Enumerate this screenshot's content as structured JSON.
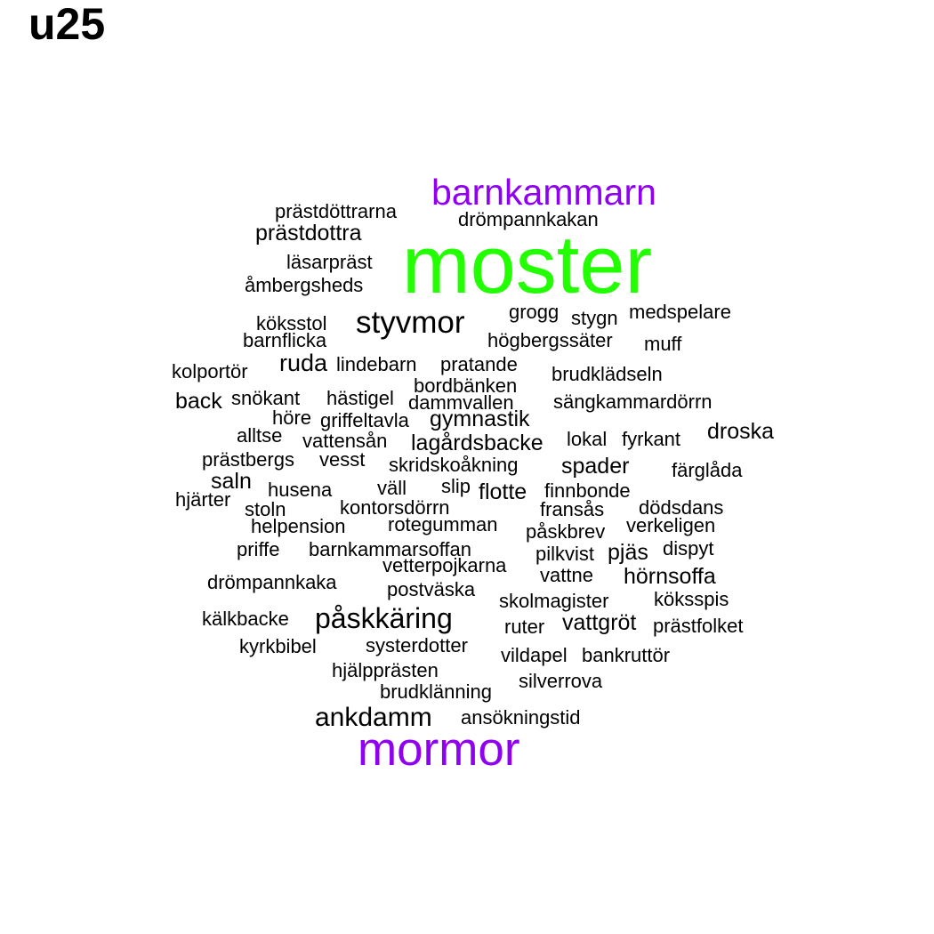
{
  "panel_title": "u25",
  "colors": {
    "top": "#22ff00",
    "high": "#8f00f0",
    "normal": "#000000"
  },
  "words": [
    {
      "text": "moster",
      "tier": "top"
    },
    {
      "text": "barnkammarn",
      "tier": "high"
    },
    {
      "text": "mormor",
      "tier": "high"
    },
    {
      "text": "styvmor",
      "tier": "normal"
    },
    {
      "text": "påskkäring",
      "tier": "normal"
    },
    {
      "text": "ankdamm",
      "tier": "normal"
    },
    {
      "text": "prästdottra",
      "tier": "normal"
    },
    {
      "text": "prästdöttrarna",
      "tier": "normal"
    },
    {
      "text": "drömpannkakan",
      "tier": "normal"
    },
    {
      "text": "läsarpräst",
      "tier": "normal"
    },
    {
      "text": "åmbergsheds",
      "tier": "normal"
    },
    {
      "text": "grogg",
      "tier": "normal"
    },
    {
      "text": "stygn",
      "tier": "normal"
    },
    {
      "text": "medspelare",
      "tier": "normal"
    },
    {
      "text": "köksstol",
      "tier": "normal"
    },
    {
      "text": "barnflicka",
      "tier": "normal"
    },
    {
      "text": "högbergssäter",
      "tier": "normal"
    },
    {
      "text": "muff",
      "tier": "normal"
    },
    {
      "text": "kolportör",
      "tier": "normal"
    },
    {
      "text": "ruda",
      "tier": "normal"
    },
    {
      "text": "lindebarn",
      "tier": "normal"
    },
    {
      "text": "pratande",
      "tier": "normal"
    },
    {
      "text": "brudklädseln",
      "tier": "normal"
    },
    {
      "text": "bordbänken",
      "tier": "normal"
    },
    {
      "text": "back",
      "tier": "normal"
    },
    {
      "text": "snökant",
      "tier": "normal"
    },
    {
      "text": "hästigel",
      "tier": "normal"
    },
    {
      "text": "dammvallen",
      "tier": "normal"
    },
    {
      "text": "sängkammardörrn",
      "tier": "normal"
    },
    {
      "text": "höre",
      "tier": "normal"
    },
    {
      "text": "griffeltavla",
      "tier": "normal"
    },
    {
      "text": "gymnastik",
      "tier": "normal"
    },
    {
      "text": "alltse",
      "tier": "normal"
    },
    {
      "text": "vattensån",
      "tier": "normal"
    },
    {
      "text": "lagårdsbacke",
      "tier": "normal"
    },
    {
      "text": "lokal",
      "tier": "normal"
    },
    {
      "text": "fyrkant",
      "tier": "normal"
    },
    {
      "text": "droska",
      "tier": "normal"
    },
    {
      "text": "prästbergs",
      "tier": "normal"
    },
    {
      "text": "vesst",
      "tier": "normal"
    },
    {
      "text": "skridskoåkning",
      "tier": "normal"
    },
    {
      "text": "spader",
      "tier": "normal"
    },
    {
      "text": "färglåda",
      "tier": "normal"
    },
    {
      "text": "saln",
      "tier": "normal"
    },
    {
      "text": "husena",
      "tier": "normal"
    },
    {
      "text": "väll",
      "tier": "normal"
    },
    {
      "text": "slip",
      "tier": "normal"
    },
    {
      "text": "flotte",
      "tier": "normal"
    },
    {
      "text": "finnbonde",
      "tier": "normal"
    },
    {
      "text": "hjärter",
      "tier": "normal"
    },
    {
      "text": "stoln",
      "tier": "normal"
    },
    {
      "text": "kontorsdörrn",
      "tier": "normal"
    },
    {
      "text": "fransås",
      "tier": "normal"
    },
    {
      "text": "dödsdans",
      "tier": "normal"
    },
    {
      "text": "helpension",
      "tier": "normal"
    },
    {
      "text": "rotegumman",
      "tier": "normal"
    },
    {
      "text": "påskbrev",
      "tier": "normal"
    },
    {
      "text": "verkeligen",
      "tier": "normal"
    },
    {
      "text": "priffe",
      "tier": "normal"
    },
    {
      "text": "barnkammarsoffan",
      "tier": "normal"
    },
    {
      "text": "pilkvist",
      "tier": "normal"
    },
    {
      "text": "pjäs",
      "tier": "normal"
    },
    {
      "text": "dispyt",
      "tier": "normal"
    },
    {
      "text": "vetterpojkarna",
      "tier": "normal"
    },
    {
      "text": "drömpannkaka",
      "tier": "normal"
    },
    {
      "text": "vattne",
      "tier": "normal"
    },
    {
      "text": "hörnsoffa",
      "tier": "normal"
    },
    {
      "text": "postväska",
      "tier": "normal"
    },
    {
      "text": "skolmagister",
      "tier": "normal"
    },
    {
      "text": "köksspis",
      "tier": "normal"
    },
    {
      "text": "kälkbacke",
      "tier": "normal"
    },
    {
      "text": "ruter",
      "tier": "normal"
    },
    {
      "text": "vattgröt",
      "tier": "normal"
    },
    {
      "text": "prästfolket",
      "tier": "normal"
    },
    {
      "text": "kyrkbibel",
      "tier": "normal"
    },
    {
      "text": "systerdotter",
      "tier": "normal"
    },
    {
      "text": "vildapel",
      "tier": "normal"
    },
    {
      "text": "bankruttör",
      "tier": "normal"
    },
    {
      "text": "hjälpprästen",
      "tier": "normal"
    },
    {
      "text": "silverrova",
      "tier": "normal"
    },
    {
      "text": "brudklänning",
      "tier": "normal"
    },
    {
      "text": "ansökningstid",
      "tier": "normal"
    }
  ]
}
